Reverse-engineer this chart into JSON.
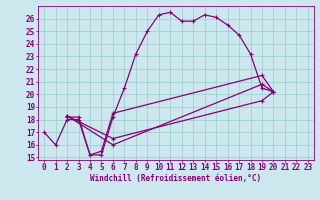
{
  "xlabel": "Windchill (Refroidissement éolien,°C)",
  "background_color": "#cce8ee",
  "line_color": "#880077",
  "grid_color": "#99cccc",
  "xlim": [
    -0.5,
    23.5
  ],
  "ylim": [
    14.8,
    27.0
  ],
  "xticks": [
    0,
    1,
    2,
    3,
    4,
    5,
    6,
    7,
    8,
    9,
    10,
    11,
    12,
    13,
    14,
    15,
    16,
    17,
    18,
    19,
    20,
    21,
    22,
    23
  ],
  "yticks": [
    15,
    16,
    17,
    18,
    19,
    20,
    21,
    22,
    23,
    24,
    25,
    26
  ],
  "lines": [
    {
      "x": [
        0,
        1,
        2,
        3,
        4,
        5,
        6,
        7,
        8,
        9,
        10,
        11,
        12,
        13,
        14,
        15,
        16,
        17,
        18,
        19,
        20
      ],
      "y": [
        17,
        16,
        18,
        18,
        15.2,
        15.2,
        18.2,
        20.5,
        23.2,
        25.0,
        26.3,
        26.5,
        25.8,
        25.8,
        26.3,
        26.1,
        25.5,
        24.7,
        23.2,
        20.5,
        20.2
      ]
    },
    {
      "x": [
        2,
        3,
        4,
        5,
        6,
        19,
        20
      ],
      "y": [
        18.2,
        18.2,
        15.2,
        15.5,
        18.5,
        21.5,
        20.2
      ]
    },
    {
      "x": [
        2,
        6,
        19,
        20
      ],
      "y": [
        18.3,
        16.0,
        20.8,
        20.2
      ]
    },
    {
      "x": [
        2,
        6,
        19,
        20
      ],
      "y": [
        18.3,
        16.5,
        19.5,
        20.2
      ]
    }
  ],
  "tick_fontsize": 5.5,
  "xlabel_fontsize": 5.5,
  "marker_size": 2.5,
  "line_width": 0.9
}
